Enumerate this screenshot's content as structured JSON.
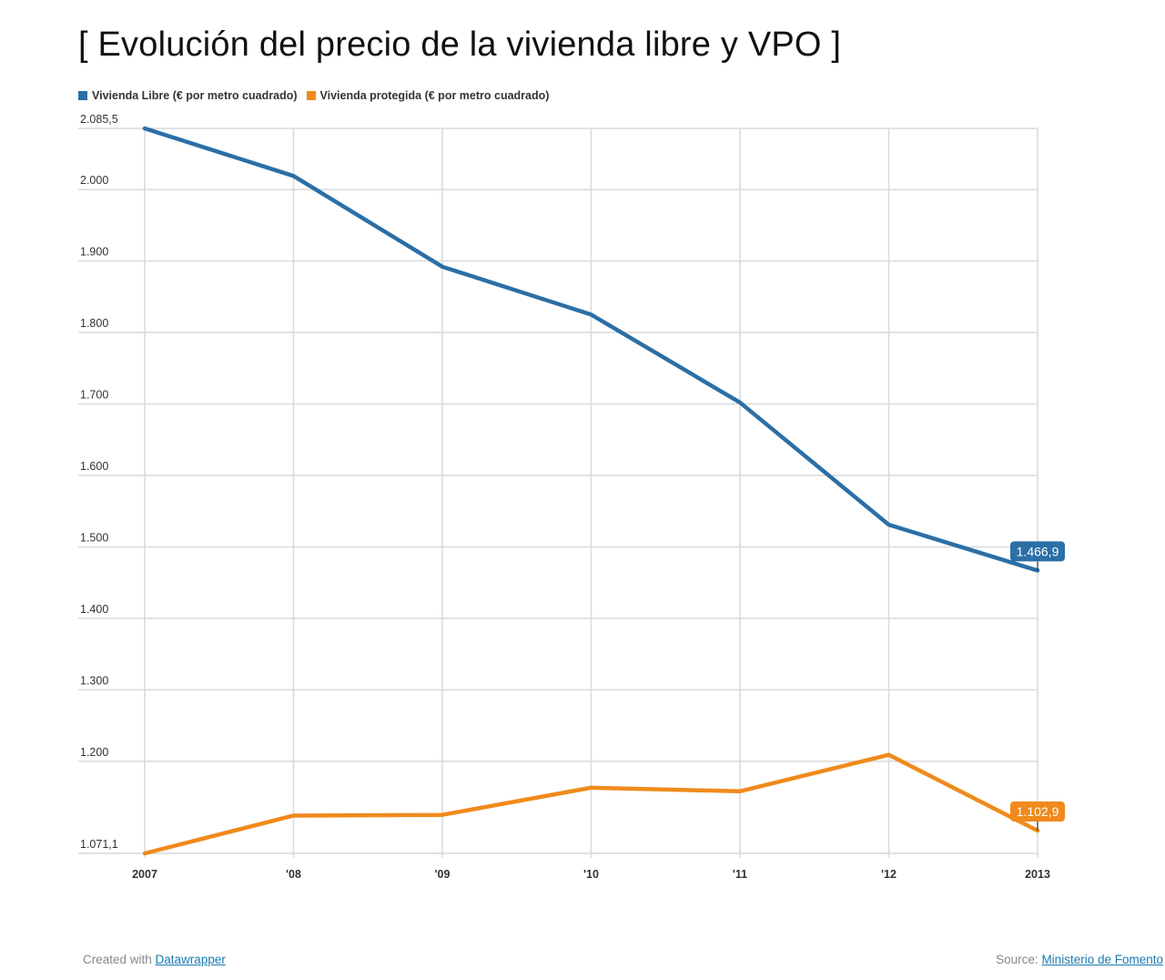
{
  "title": "[ Evolución del precio de la vivienda libre y VPO ]",
  "chart_data": {
    "type": "line",
    "title": "[ Evolución del precio de la vivienda libre y VPO ]",
    "categories": [
      "2007",
      "'08",
      "'09",
      "'10",
      "'11",
      "'12",
      "2013"
    ],
    "series": [
      {
        "name": "Vivienda Libre (€ por metro cuadrado)",
        "color": "#2b6fa6",
        "values": [
          2085.5,
          2019,
          1892,
          1825,
          1702,
          1531,
          1466.9
        ],
        "end_label": "1.466,9"
      },
      {
        "name": "Vivienda protegida (€ por metro cuadrado)",
        "color": "#f08a1c",
        "values": [
          1071.1,
          1124,
          1125,
          1163,
          1158,
          1209,
          1102.9
        ],
        "end_label": "1.102,9"
      }
    ],
    "ylim": [
      1071.1,
      2085.5
    ],
    "y_ticks": [
      {
        "value": 2085.5,
        "label": "2.085,5"
      },
      {
        "value": 2000,
        "label": "2.000"
      },
      {
        "value": 1900,
        "label": "1.900"
      },
      {
        "value": 1800,
        "label": "1.800"
      },
      {
        "value": 1700,
        "label": "1.700"
      },
      {
        "value": 1600,
        "label": "1.600"
      },
      {
        "value": 1500,
        "label": "1.500"
      },
      {
        "value": 1400,
        "label": "1.400"
      },
      {
        "value": 1300,
        "label": "1.300"
      },
      {
        "value": 1200,
        "label": "1.200"
      },
      {
        "value": 1071.1,
        "label": "1.071,1"
      }
    ],
    "grid": true,
    "legend_position": "top-left"
  },
  "footer": {
    "created_prefix": "Created with ",
    "created_link": "Datawrapper",
    "source_prefix": "Source: ",
    "source_link": "Ministerio de Fomento"
  }
}
